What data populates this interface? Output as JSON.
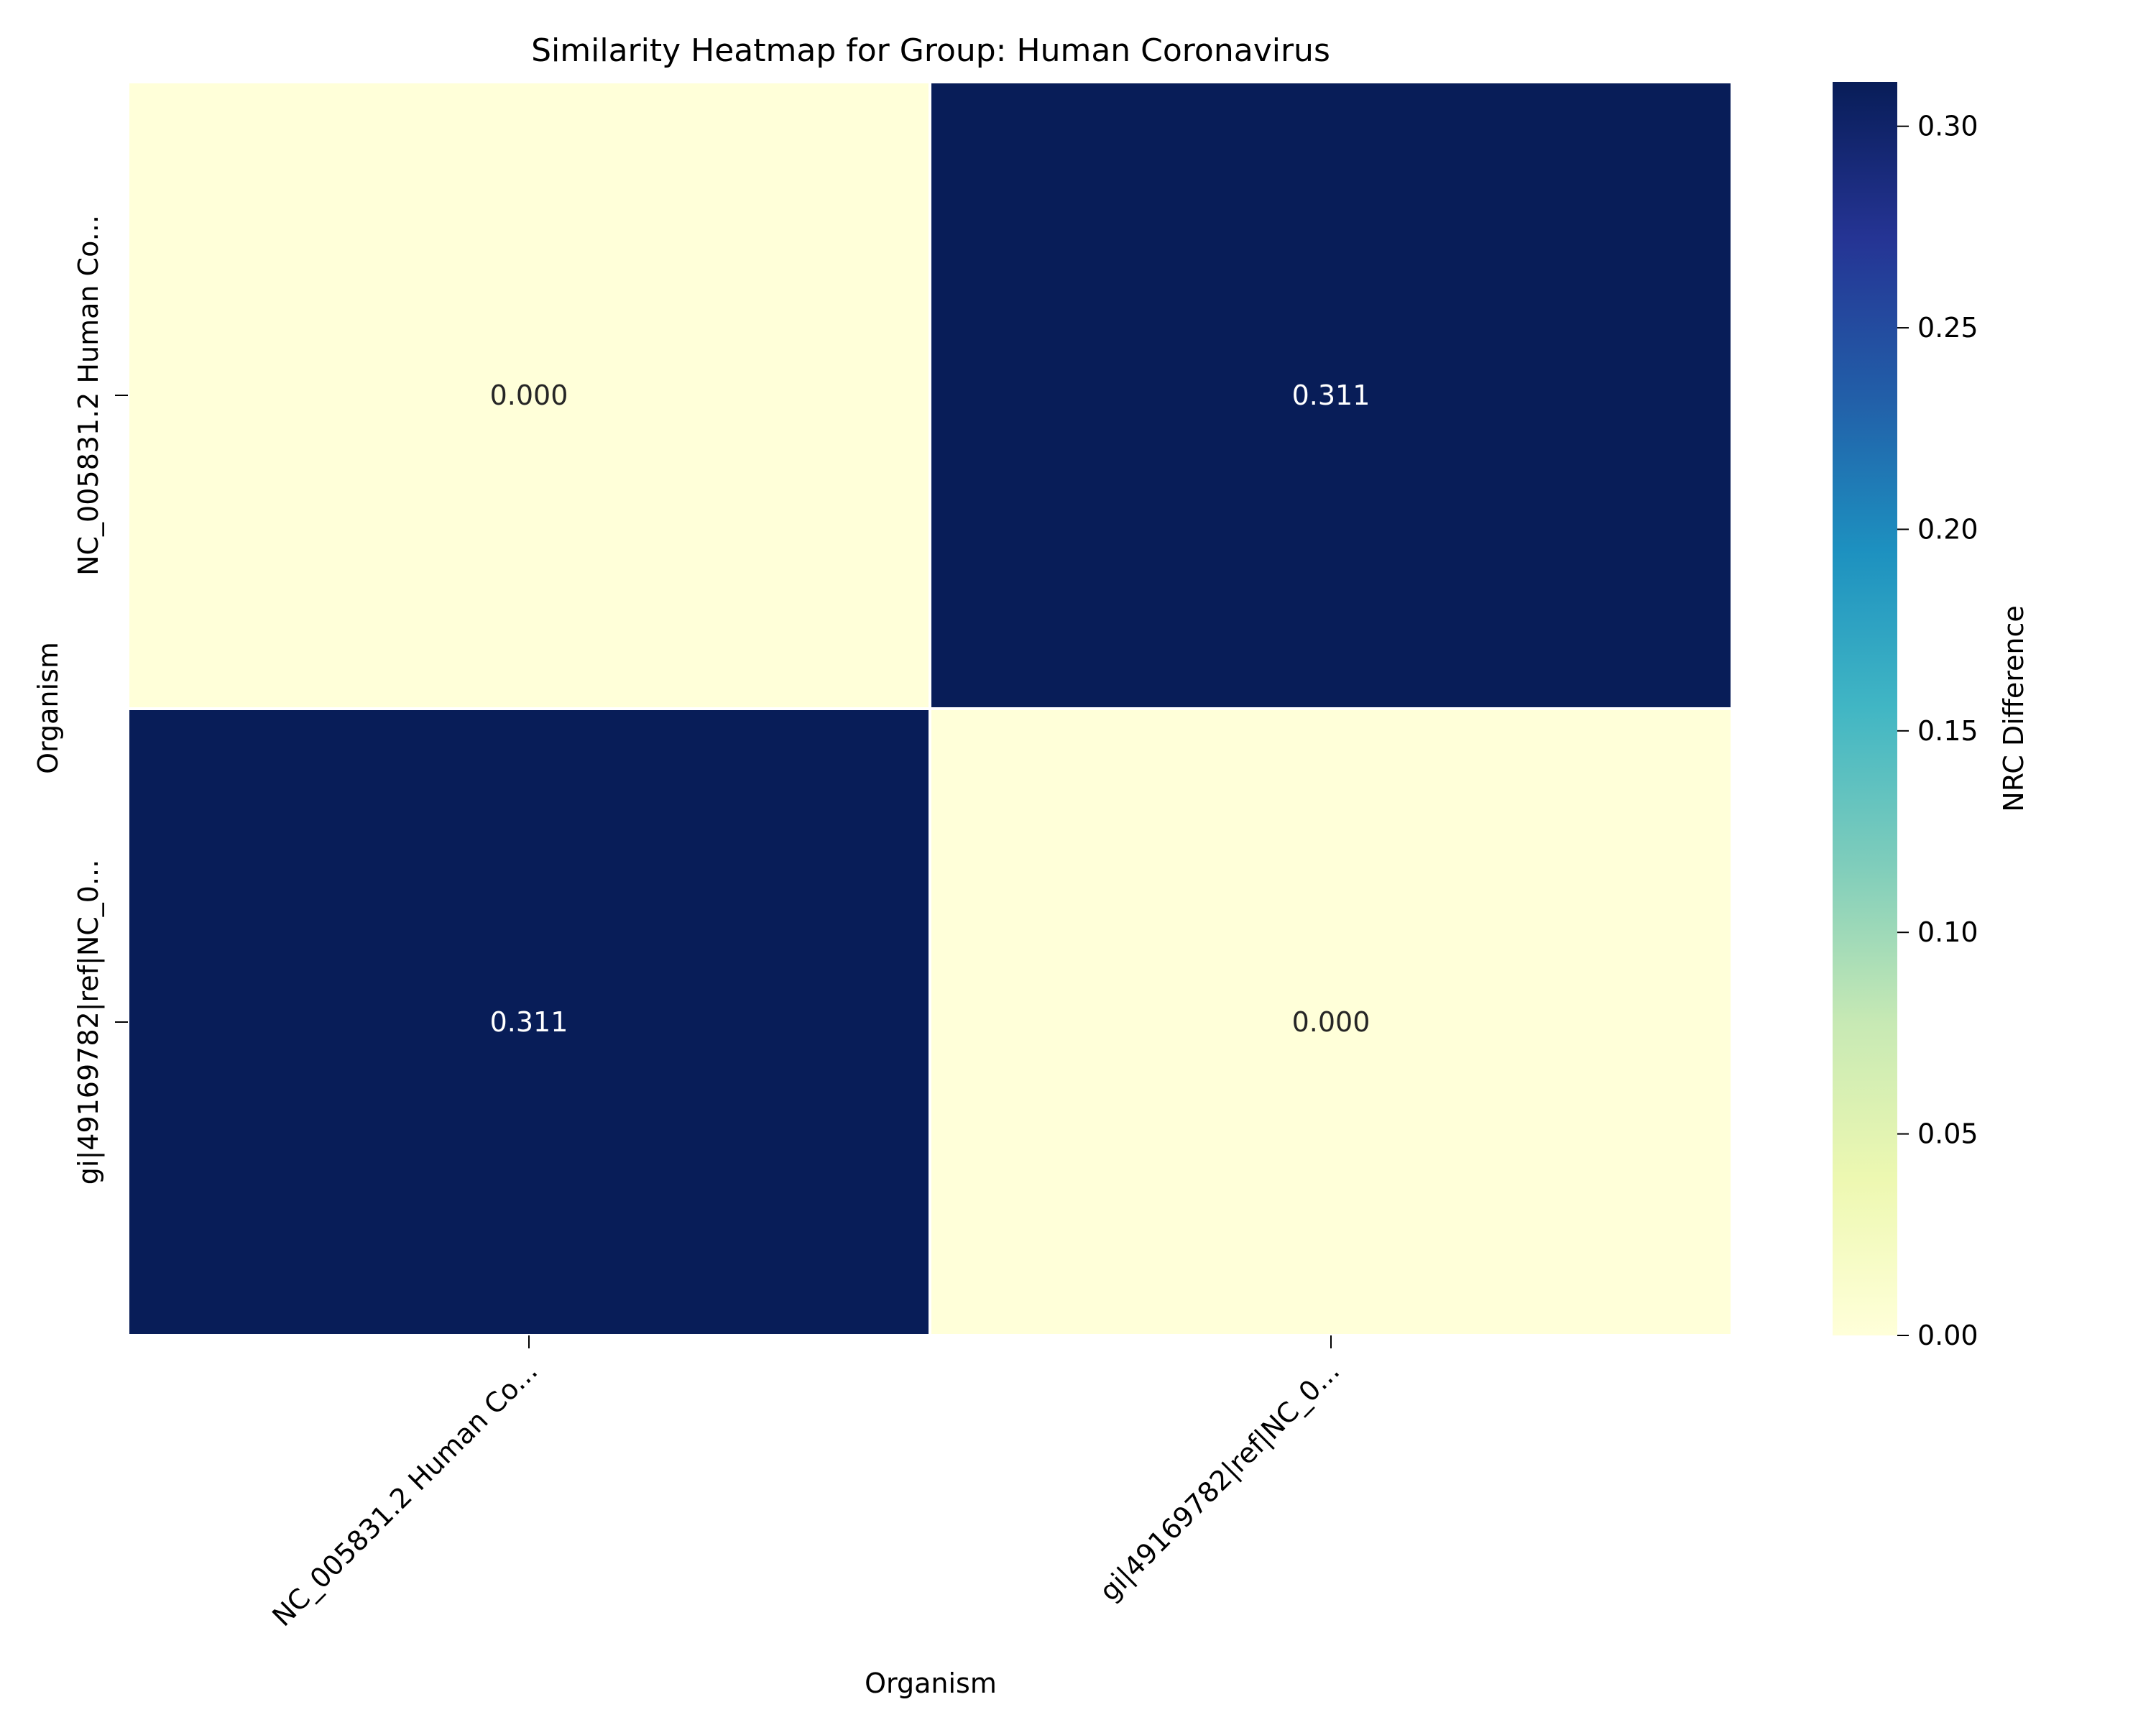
{
  "chart_data": {
    "type": "heatmap",
    "title": "Similarity Heatmap for Group: Human Coronavirus",
    "xlabel": "Organism",
    "ylabel": "Organism",
    "x_categories": [
      "NC_005831.2 Human Co...",
      "gi|49169782|ref|NC_0..."
    ],
    "y_categories": [
      "NC_005831.2 Human Co...",
      "gi|49169782|ref|NC_0..."
    ],
    "values": [
      [
        0.0,
        0.311
      ],
      [
        0.311,
        0.0
      ]
    ],
    "cell_labels": [
      [
        "0.000",
        "0.311"
      ],
      [
        "0.311",
        "0.000"
      ]
    ],
    "colorbar": {
      "label": "NRC Difference",
      "range": [
        0.0,
        0.311
      ],
      "ticks": [
        0.0,
        0.05,
        0.1,
        0.15,
        0.2,
        0.25,
        0.3
      ],
      "tick_labels": [
        "0.00",
        "0.05",
        "0.10",
        "0.15",
        "0.20",
        "0.25",
        "0.30"
      ],
      "colormap": "YlGnBu",
      "stops": [
        "#ffffd9",
        "#edf8b1",
        "#c7e9b4",
        "#7fcdbb",
        "#41b6c4",
        "#1d91c0",
        "#225ea8",
        "#253494",
        "#081d58"
      ]
    },
    "grid": false
  }
}
